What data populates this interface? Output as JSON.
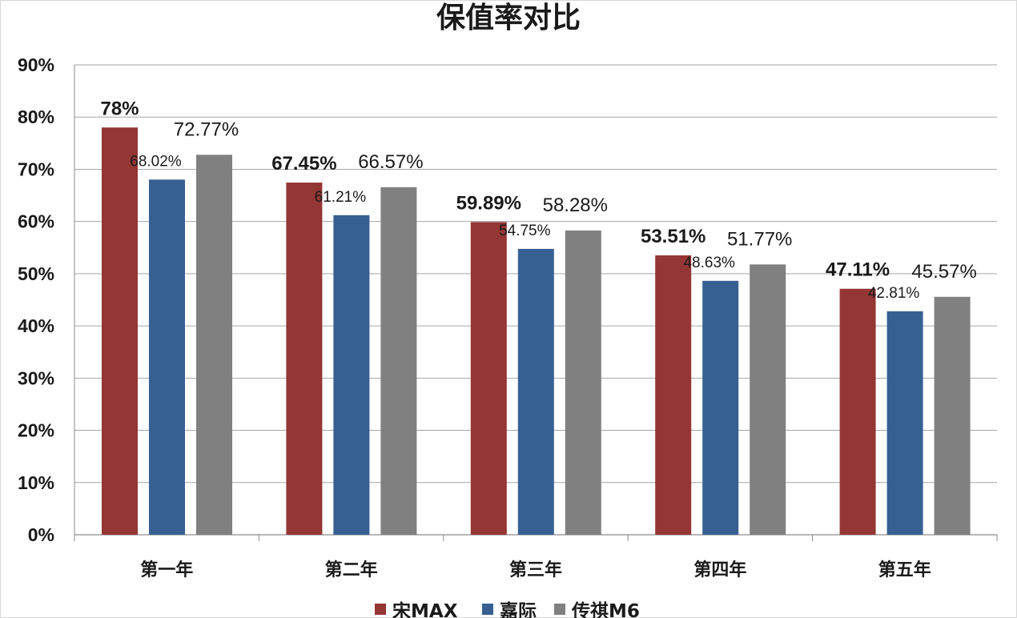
{
  "chart_data": {
    "type": "bar",
    "title": "保值率对比",
    "categories": [
      "第一年",
      "第二年",
      "第三年",
      "第四年",
      "第五年"
    ],
    "series": [
      {
        "name": "宋MAX",
        "color": "#943634",
        "values": [
          78,
          67.45,
          59.89,
          53.51,
          47.11
        ],
        "labels": [
          "78%",
          "67.45%",
          "59.89%",
          "53.51%",
          "47.11%"
        ]
      },
      {
        "name": "嘉际",
        "color": "#376092",
        "values": [
          68.02,
          61.21,
          54.75,
          48.63,
          42.81
        ],
        "labels": [
          "68.02%",
          "61.21%",
          "54.75%",
          "48.63%",
          "42.81%"
        ]
      },
      {
        "name": "传祺M6",
        "color": "#808080",
        "values": [
          72.77,
          66.57,
          58.28,
          51.77,
          45.57
        ],
        "labels": [
          "72.77%",
          "66.57%",
          "58.28%",
          "51.77%",
          "45.57%"
        ]
      }
    ],
    "y_ticks": [
      "0%",
      "10%",
      "20%",
      "30%",
      "40%",
      "50%",
      "60%",
      "70%",
      "80%",
      "90%"
    ],
    "ylim": [
      0,
      90
    ],
    "grid": true,
    "legend_position": "bottom"
  }
}
